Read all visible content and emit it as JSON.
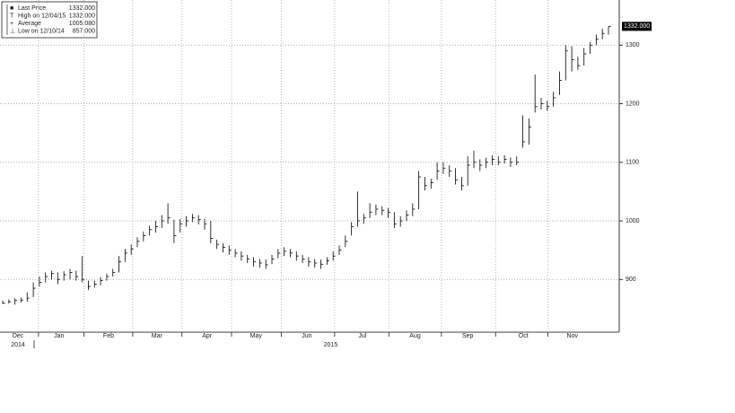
{
  "chart_data": {
    "type": "ohlc",
    "legend": [
      {
        "name": "Last Price",
        "value": "1332.000"
      },
      {
        "name": "High on 12/04/15",
        "value": "1332.000"
      },
      {
        "name": "Average",
        "value": "1005.080"
      },
      {
        "name": "Low on 12/10/14",
        "value": "857.000"
      }
    ],
    "last_price_label": "1332.000",
    "years": [
      {
        "value": 2.5,
        "label": "2014"
      },
      {
        "value": 53.6,
        "label": "2015"
      }
    ],
    "xticks": [
      {
        "value": 2.5,
        "label": "Dec"
      },
      {
        "value": 9.2,
        "label": "Jan"
      },
      {
        "value": 17.3,
        "label": "Feb"
      },
      {
        "value": 25.2,
        "label": "Mar"
      },
      {
        "value": 33.4,
        "label": "Apr"
      },
      {
        "value": 41.4,
        "label": "May"
      },
      {
        "value": 49.7,
        "label": "Jun"
      },
      {
        "value": 58.8,
        "label": "Jul"
      },
      {
        "value": 67.4,
        "label": "Aug"
      },
      {
        "value": 76,
        "label": "Sep"
      },
      {
        "value": 85.1,
        "label": "Oct"
      },
      {
        "value": 93.1,
        "label": "Nov"
      }
    ],
    "xlim": [
      0,
      99
    ],
    "ylim": [
      810,
      1377
    ],
    "yticks": [
      900,
      1000,
      1100,
      1200,
      1300
    ],
    "grid": true,
    "color": "#000000",
    "values": [
      860,
      862,
      864,
      865,
      868,
      885,
      895,
      905,
      910,
      900,
      908,
      912,
      905,
      900,
      888,
      892,
      898,
      905,
      912,
      930,
      945,
      952,
      965,
      975,
      985,
      990,
      1000,
      1005,
      975,
      995,
      1000,
      1005,
      1002,
      995,
      970,
      960,
      955,
      950,
      945,
      940,
      935,
      930,
      928,
      925,
      935,
      945,
      948,
      945,
      940,
      935,
      930,
      928,
      926,
      932,
      940,
      950,
      965,
      990,
      1000,
      1005,
      1015,
      1020,
      1018,
      1015,
      995,
      1000,
      1010,
      1020,
      1075,
      1060,
      1065,
      1085,
      1090,
      1085,
      1070,
      1060,
      1095,
      1100,
      1095,
      1100,
      1105,
      1100,
      1105,
      1100,
      1100,
      1135,
      1160,
      1195,
      1200,
      1195,
      1210,
      1240,
      1290,
      1275,
      1265,
      1285,
      1300,
      1310,
      1320,
      1332
    ],
    "high": [
      864,
      866,
      868,
      869,
      878,
      895,
      905,
      912,
      915,
      912,
      914,
      918,
      915,
      940,
      898,
      898,
      904,
      910,
      918,
      940,
      952,
      960,
      972,
      982,
      992,
      1000,
      1010,
      1030,
      1002,
      1003,
      1008,
      1012,
      1010,
      1003,
      1000,
      968,
      962,
      958,
      952,
      948,
      942,
      938,
      935,
      934,
      942,
      952,
      955,
      952,
      948,
      942,
      938,
      935,
      934,
      938,
      948,
      958,
      975,
      998,
      1050,
      1012,
      1030,
      1028,
      1025,
      1022,
      1015,
      1008,
      1018,
      1030,
      1085,
      1075,
      1072,
      1100,
      1100,
      1095,
      1090,
      1075,
      1110,
      1120,
      1105,
      1108,
      1112,
      1110,
      1112,
      1108,
      1110,
      1180,
      1175,
      1250,
      1210,
      1205,
      1220,
      1255,
      1300,
      1298,
      1280,
      1295,
      1305,
      1318,
      1328,
      1332
    ],
    "low": [
      858,
      859,
      857,
      861,
      862,
      870,
      888,
      895,
      900,
      892,
      898,
      900,
      898,
      895,
      882,
      886,
      890,
      898,
      905,
      912,
      930,
      942,
      955,
      965,
      975,
      980,
      988,
      995,
      962,
      980,
      990,
      998,
      994,
      985,
      962,
      952,
      946,
      942,
      938,
      932,
      928,
      922,
      920,
      918,
      926,
      936,
      940,
      938,
      932,
      928,
      922,
      920,
      918,
      925,
      932,
      942,
      955,
      975,
      990,
      995,
      1005,
      1010,
      1010,
      1005,
      988,
      990,
      1000,
      1008,
      1020,
      1052,
      1055,
      1070,
      1080,
      1075,
      1062,
      1052,
      1060,
      1090,
      1085,
      1090,
      1095,
      1095,
      1098,
      1092,
      1095,
      1125,
      1130,
      1185,
      1190,
      1188,
      1195,
      1215,
      1240,
      1255,
      1258,
      1265,
      1285,
      1300,
      1310,
      1318
    ]
  }
}
